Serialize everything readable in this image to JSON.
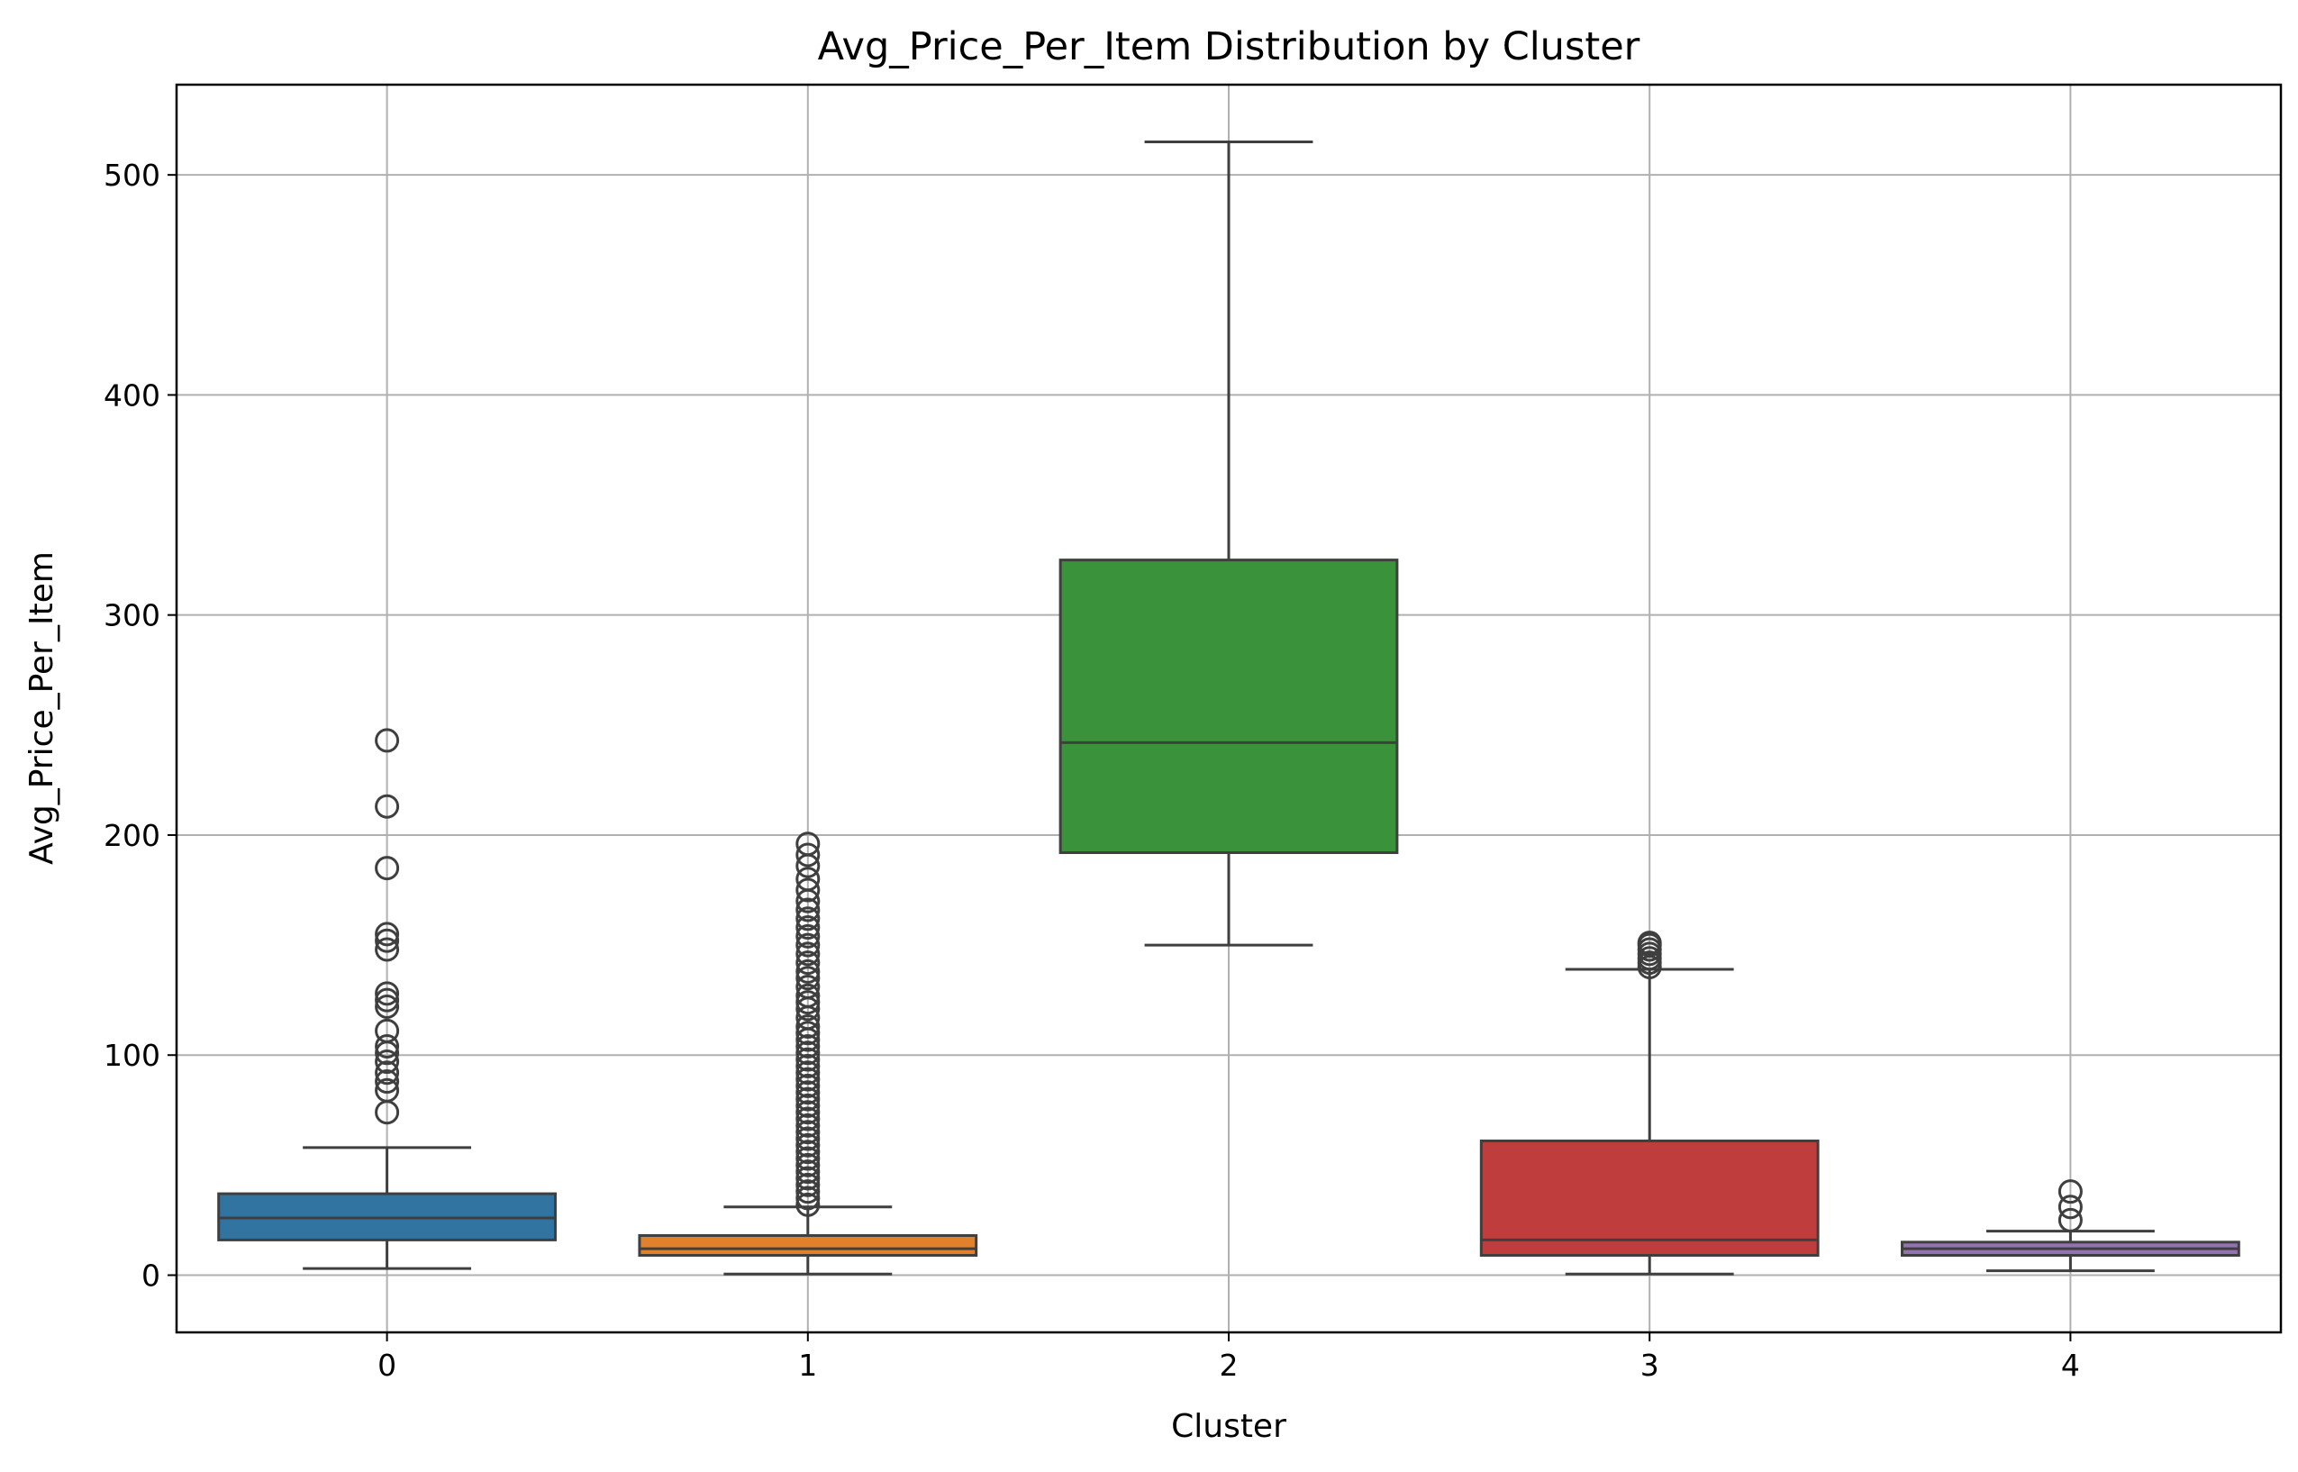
{
  "chart_data": {
    "type": "box",
    "title": "Avg_Price_Per_Item Distribution by Cluster",
    "xlabel": "Cluster",
    "ylabel": "Avg_Price_Per_Item",
    "ylim": [
      -26,
      541
    ],
    "yticks": [
      0,
      100,
      200,
      300,
      400,
      500
    ],
    "grid": true,
    "categories": [
      "0",
      "1",
      "2",
      "3",
      "4"
    ],
    "boxes": [
      {
        "category": "0",
        "color": "#3274a1",
        "whisker_low": 3,
        "q1": 16,
        "median": 26,
        "q3": 37,
        "whisker_high": 58,
        "outliers": [
          74,
          84,
          88,
          92,
          97,
          101,
          104,
          111,
          122,
          125,
          128,
          148,
          152,
          155,
          185,
          213,
          243
        ]
      },
      {
        "category": "1",
        "color": "#e1812c",
        "whisker_low": 0.5,
        "q1": 9,
        "median": 12,
        "q3": 18,
        "whisker_high": 31,
        "outliers": [
          32,
          35,
          38,
          41,
          44,
          47,
          50,
          53,
          56,
          59,
          62,
          65,
          68,
          71,
          74,
          77,
          80,
          83,
          86,
          89,
          92,
          95,
          98,
          101,
          104,
          107,
          110,
          113,
          117,
          121,
          124,
          127,
          131,
          135,
          138,
          142,
          146,
          150,
          154,
          158,
          162,
          166,
          170,
          175,
          180,
          186,
          191,
          196
        ]
      },
      {
        "category": "2",
        "color": "#3a923a",
        "whisker_low": 150,
        "q1": 192,
        "median": 242,
        "q3": 325,
        "whisker_high": 515,
        "outliers": []
      },
      {
        "category": "3",
        "color": "#c03d3e",
        "whisker_low": 0.5,
        "q1": 9,
        "median": 16,
        "q3": 61,
        "whisker_high": 139,
        "outliers": [
          140,
          142,
          144,
          146,
          148,
          150,
          151
        ]
      },
      {
        "category": "4",
        "color": "#9372b2",
        "whisker_low": 2,
        "q1": 9,
        "median": 12,
        "q3": 15,
        "whisker_high": 20,
        "outliers": [
          25,
          31,
          38
        ]
      }
    ]
  }
}
